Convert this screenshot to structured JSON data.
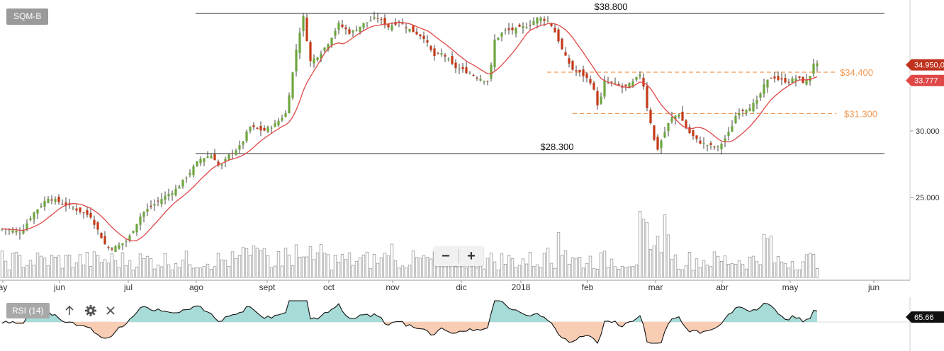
{
  "ticker": {
    "label": "SQM-B"
  },
  "rsi_panel": {
    "label": "RSI (14)",
    "value_label": "65.66",
    "fill_up": "#a6dbd7",
    "fill_down": "#f8cdb4"
  },
  "zoom": {
    "minus": "−",
    "plus": "+"
  },
  "icons": {
    "up": "arrow-up-icon",
    "settings": "gear-icon",
    "close": "close-icon"
  },
  "colors": {
    "up_candle": "#6ea63f",
    "down_candle": "#c43a17",
    "sma_line": "#e04848",
    "orange_level": "#f29a55",
    "price_badge": "#c0321e",
    "sma_badge": "#e04848",
    "volume": "#999999",
    "rsi_badge": "#111111"
  },
  "chart_data": {
    "type": "candlestick",
    "y_ticks": [
      "25.000",
      "30.000"
    ],
    "x_labels": [
      "ay",
      "jun",
      "jul",
      "ago",
      "sept",
      "oct",
      "nov",
      "dic",
      "2018",
      "feb",
      "mar",
      "abr",
      "may",
      "jun"
    ],
    "levels": [
      {
        "value": 38.8,
        "label": "$38.800",
        "style": "solid"
      },
      {
        "value": 28.3,
        "label": "$28.300",
        "style": "solid"
      },
      {
        "value": 34.4,
        "label": "$34.400",
        "style": "dashed"
      },
      {
        "value": 31.3,
        "label": "$31.300",
        "style": "dashed"
      }
    ],
    "last_price": {
      "value": 34.95,
      "label": "34.950,0"
    },
    "sma": {
      "value": 33.777,
      "label": "33.777"
    },
    "anchors": [
      [
        0,
        22.7
      ],
      [
        30,
        22.4
      ],
      [
        45,
        23.7
      ],
      [
        68,
        25.0
      ],
      [
        100,
        24.3
      ],
      [
        128,
        23.6
      ],
      [
        150,
        21.3
      ],
      [
        160,
        21.2
      ],
      [
        180,
        21.8
      ],
      [
        200,
        23.8
      ],
      [
        225,
        24.8
      ],
      [
        250,
        25.7
      ],
      [
        268,
        26.9
      ],
      [
        282,
        27.9
      ],
      [
        300,
        28.2
      ],
      [
        310,
        27.2
      ],
      [
        322,
        28.1
      ],
      [
        340,
        28.9
      ],
      [
        352,
        30.3
      ],
      [
        372,
        30.0
      ],
      [
        388,
        30.5
      ],
      [
        403,
        31.3
      ],
      [
        412,
        34.0
      ],
      [
        420,
        36.8
      ],
      [
        428,
        38.5
      ],
      [
        438,
        35.2
      ],
      [
        450,
        35.7
      ],
      [
        462,
        36.5
      ],
      [
        478,
        38.0
      ],
      [
        495,
        37.3
      ],
      [
        512,
        38.0
      ],
      [
        532,
        38.5
      ],
      [
        548,
        37.8
      ],
      [
        562,
        38.2
      ],
      [
        578,
        37.6
      ],
      [
        598,
        37.0
      ],
      [
        612,
        35.6
      ],
      [
        625,
        35.8
      ],
      [
        640,
        34.8
      ],
      [
        660,
        34.4
      ],
      [
        675,
        34.0
      ],
      [
        690,
        33.7
      ],
      [
        698,
        36.8
      ],
      [
        712,
        37.5
      ],
      [
        728,
        37.6
      ],
      [
        745,
        37.9
      ],
      [
        760,
        38.5
      ],
      [
        775,
        38.2
      ],
      [
        785,
        37.2
      ],
      [
        795,
        35.8
      ],
      [
        808,
        34.6
      ],
      [
        822,
        34.2
      ],
      [
        835,
        33.6
      ],
      [
        845,
        31.6
      ],
      [
        852,
        33.7
      ],
      [
        865,
        33.6
      ],
      [
        880,
        33.2
      ],
      [
        895,
        33.7
      ],
      [
        905,
        34.4
      ],
      [
        912,
        32.0
      ],
      [
        920,
        30.2
      ],
      [
        926,
        28.4
      ],
      [
        934,
        29.4
      ],
      [
        946,
        30.9
      ],
      [
        958,
        31.3
      ],
      [
        970,
        30.0
      ],
      [
        985,
        29.2
      ],
      [
        1000,
        28.9
      ],
      [
        1012,
        28.7
      ],
      [
        1020,
        29.2
      ],
      [
        1030,
        30.0
      ],
      [
        1040,
        31.4
      ],
      [
        1055,
        31.7
      ],
      [
        1068,
        32.2
      ],
      [
        1080,
        33.6
      ],
      [
        1090,
        34.1
      ],
      [
        1100,
        33.8
      ],
      [
        1112,
        33.7
      ],
      [
        1125,
        34.0
      ],
      [
        1135,
        33.6
      ],
      [
        1142,
        34.0
      ],
      [
        1148,
        35.1
      ],
      [
        1153,
        34.95
      ]
    ]
  }
}
